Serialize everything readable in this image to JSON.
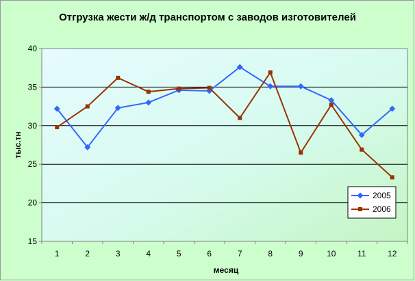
{
  "chart_data": {
    "type": "line",
    "title": "Отгрузка жести ж/д транспортом с заводов изготовителей",
    "xlabel": "месяц",
    "ylabel": "тыс.тн",
    "categories": [
      "1",
      "2",
      "3",
      "4",
      "5",
      "6",
      "7",
      "8",
      "9",
      "10",
      "11",
      "12"
    ],
    "ylim": [
      15,
      40
    ],
    "yticks": [
      "15",
      "20",
      "25",
      "30",
      "35",
      "40"
    ],
    "grid": true,
    "legend_position": "bottom-right",
    "series": [
      {
        "name": "2005",
        "color": "#3366ff",
        "marker": "diamond",
        "values": [
          32.2,
          27.2,
          32.3,
          33.0,
          34.6,
          34.5,
          37.6,
          35.1,
          35.1,
          33.3,
          28.8,
          32.2
        ]
      },
      {
        "name": "2006",
        "color": "#993300",
        "marker": "square",
        "values": [
          29.8,
          32.5,
          36.2,
          34.4,
          34.8,
          34.9,
          31.0,
          36.9,
          26.5,
          32.7,
          26.9,
          23.3
        ]
      }
    ]
  }
}
